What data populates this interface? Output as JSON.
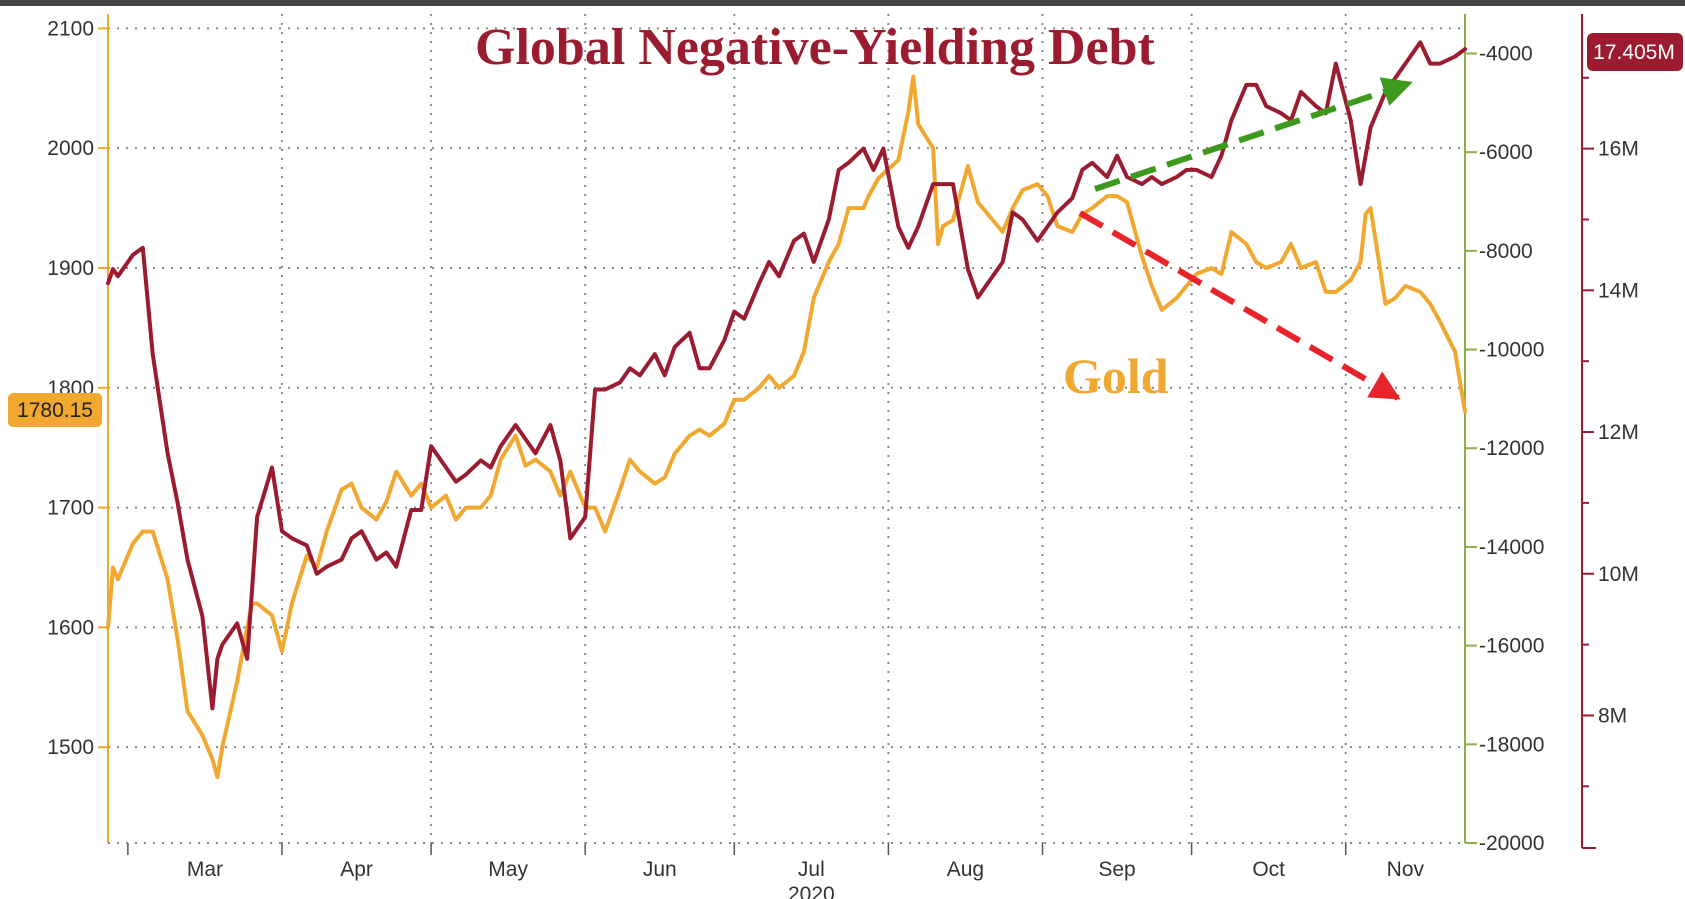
{
  "colors": {
    "gold": "#f0a830",
    "debt": "#9b1b30",
    "green_axis": "#8ab04a",
    "grid": "#888888",
    "up_arrow": "#3d9a1e",
    "down_arrow": "#e8232a",
    "background": "#ffffff",
    "frame": "#444444"
  },
  "chart_data": {
    "type": "line",
    "title": "Global Negative-Yielding Debt",
    "annotations": [
      "Gold"
    ],
    "xlabel": "2020",
    "x_ticks": [
      "Mar",
      "Apr",
      "May",
      "Jun",
      "Jul",
      "Aug",
      "Sep",
      "Oct",
      "Nov"
    ],
    "x_range": [
      "2020-02-26",
      "2020-11-25"
    ],
    "grid": true,
    "axes": {
      "left": {
        "ticks": [
          "1500",
          "1600",
          "1700",
          "1800",
          "1900",
          "2000",
          "2100"
        ],
        "range": [
          1420,
          2112
        ],
        "last_value_tag": "1780.15"
      },
      "right_inner": {
        "ticks": [
          "-4000",
          "-6000",
          "-8000",
          "-10000",
          "-12000",
          "-14000",
          "-16000",
          "-18000",
          "-20000"
        ],
        "range": [
          -20000,
          -3200
        ]
      },
      "right_outer": {
        "ticks": [
          "8M",
          "10M",
          "12M",
          "14M",
          "16M"
        ],
        "range": [
          6.2,
          17.9
        ],
        "last_value_tag": "17.405M"
      }
    },
    "series": [
      {
        "name": "Gold",
        "axis": "left",
        "x": [
          "2020-02-26",
          "2020-02-27",
          "2020-02-28",
          "2020-03-02",
          "2020-03-03",
          "2020-03-04",
          "2020-03-06",
          "2020-03-09",
          "2020-03-11",
          "2020-03-13",
          "2020-03-16",
          "2020-03-18",
          "2020-03-19",
          "2020-03-20",
          "2020-03-23",
          "2020-03-25",
          "2020-03-26",
          "2020-03-27",
          "2020-03-30",
          "2020-04-01",
          "2020-04-03",
          "2020-04-06",
          "2020-04-08",
          "2020-04-10",
          "2020-04-13",
          "2020-04-15",
          "2020-04-17",
          "2020-04-20",
          "2020-04-22",
          "2020-04-24",
          "2020-04-27",
          "2020-04-29",
          "2020-05-01",
          "2020-05-04",
          "2020-05-06",
          "2020-05-08",
          "2020-05-11",
          "2020-05-13",
          "2020-05-15",
          "2020-05-18",
          "2020-05-20",
          "2020-05-22",
          "2020-05-25",
          "2020-05-27",
          "2020-05-29",
          "2020-06-01",
          "2020-06-03",
          "2020-06-05",
          "2020-06-08",
          "2020-06-10",
          "2020-06-12",
          "2020-06-15",
          "2020-06-17",
          "2020-06-19",
          "2020-06-22",
          "2020-06-24",
          "2020-06-26",
          "2020-06-29",
          "2020-07-01",
          "2020-07-03",
          "2020-07-06",
          "2020-07-08",
          "2020-07-10",
          "2020-07-13",
          "2020-07-15",
          "2020-07-17",
          "2020-07-20",
          "2020-07-22",
          "2020-07-24",
          "2020-07-27",
          "2020-07-28",
          "2020-07-30",
          "2020-08-03",
          "2020-08-05",
          "2020-08-06",
          "2020-08-07",
          "2020-08-10",
          "2020-08-11",
          "2020-08-12",
          "2020-08-14",
          "2020-08-17",
          "2020-08-19",
          "2020-08-21",
          "2020-08-24",
          "2020-08-26",
          "2020-08-28",
          "2020-08-31",
          "2020-09-02",
          "2020-09-04",
          "2020-09-07",
          "2020-09-09",
          "2020-09-11",
          "2020-09-14",
          "2020-09-16",
          "2020-09-18",
          "2020-09-21",
          "2020-09-23",
          "2020-09-25",
          "2020-09-28",
          "2020-09-30",
          "2020-10-02",
          "2020-10-05",
          "2020-10-07",
          "2020-10-09",
          "2020-10-12",
          "2020-10-14",
          "2020-10-16",
          "2020-10-19",
          "2020-10-21",
          "2020-10-23",
          "2020-10-26",
          "2020-10-28",
          "2020-10-30",
          "2020-11-02",
          "2020-11-04",
          "2020-11-05",
          "2020-11-06",
          "2020-11-09",
          "2020-11-11",
          "2020-11-13",
          "2020-11-16",
          "2020-11-18",
          "2020-11-20",
          "2020-11-23",
          "2020-11-24",
          "2020-11-25"
        ],
        "values": [
          1600,
          1650,
          1640,
          1670,
          1675,
          1680,
          1680,
          1640,
          1590,
          1530,
          1510,
          1490,
          1475,
          1500,
          1555,
          1600,
          1620,
          1620,
          1610,
          1580,
          1620,
          1660,
          1650,
          1680,
          1715,
          1720,
          1700,
          1690,
          1705,
          1730,
          1710,
          1720,
          1700,
          1710,
          1690,
          1700,
          1700,
          1710,
          1740,
          1760,
          1735,
          1740,
          1730,
          1710,
          1730,
          1700,
          1700,
          1680,
          1715,
          1740,
          1730,
          1720,
          1725,
          1745,
          1760,
          1765,
          1760,
          1770,
          1790,
          1790,
          1800,
          1810,
          1800,
          1810,
          1830,
          1875,
          1905,
          1920,
          1950,
          1950,
          1960,
          1975,
          1990,
          2030,
          2060,
          2020,
          2000,
          1920,
          1935,
          1940,
          1985,
          1955,
          1945,
          1930,
          1950,
          1965,
          1970,
          1960,
          1935,
          1930,
          1945,
          1950,
          1960,
          1960,
          1955,
          1910,
          1885,
          1865,
          1875,
          1885,
          1895,
          1900,
          1895,
          1930,
          1920,
          1905,
          1900,
          1905,
          1920,
          1900,
          1905,
          1880,
          1880,
          1890,
          1905,
          1945,
          1950,
          1870,
          1875,
          1885,
          1880,
          1870,
          1855,
          1830,
          1805,
          1780.15
        ]
      },
      {
        "name": "Global Negative-Yielding Debt",
        "axis": "right_outer",
        "x": [
          "2020-02-26",
          "2020-02-27",
          "2020-02-28",
          "2020-03-02",
          "2020-03-04",
          "2020-03-06",
          "2020-03-09",
          "2020-03-11",
          "2020-03-13",
          "2020-03-16",
          "2020-03-18",
          "2020-03-19",
          "2020-03-20",
          "2020-03-23",
          "2020-03-25",
          "2020-03-27",
          "2020-03-30",
          "2020-04-01",
          "2020-04-03",
          "2020-04-06",
          "2020-04-08",
          "2020-04-10",
          "2020-04-13",
          "2020-04-15",
          "2020-04-17",
          "2020-04-20",
          "2020-04-22",
          "2020-04-24",
          "2020-04-27",
          "2020-04-29",
          "2020-05-01",
          "2020-05-04",
          "2020-05-06",
          "2020-05-08",
          "2020-05-11",
          "2020-05-13",
          "2020-05-15",
          "2020-05-18",
          "2020-05-20",
          "2020-05-22",
          "2020-05-25",
          "2020-05-27",
          "2020-05-29",
          "2020-06-01",
          "2020-06-03",
          "2020-06-05",
          "2020-06-08",
          "2020-06-10",
          "2020-06-12",
          "2020-06-15",
          "2020-06-17",
          "2020-06-19",
          "2020-06-22",
          "2020-06-24",
          "2020-06-26",
          "2020-06-29",
          "2020-07-01",
          "2020-07-03",
          "2020-07-06",
          "2020-07-08",
          "2020-07-10",
          "2020-07-13",
          "2020-07-15",
          "2020-07-17",
          "2020-07-20",
          "2020-07-22",
          "2020-07-24",
          "2020-07-27",
          "2020-07-29",
          "2020-07-31",
          "2020-08-03",
          "2020-08-05",
          "2020-08-07",
          "2020-08-10",
          "2020-08-12",
          "2020-08-14",
          "2020-08-17",
          "2020-08-19",
          "2020-08-21",
          "2020-08-24",
          "2020-08-26",
          "2020-08-28",
          "2020-08-31",
          "2020-09-02",
          "2020-09-04",
          "2020-09-07",
          "2020-09-09",
          "2020-09-11",
          "2020-09-14",
          "2020-09-16",
          "2020-09-18",
          "2020-09-21",
          "2020-09-23",
          "2020-09-25",
          "2020-09-28",
          "2020-09-30",
          "2020-10-02",
          "2020-10-05",
          "2020-10-07",
          "2020-10-09",
          "2020-10-12",
          "2020-10-14",
          "2020-10-16",
          "2020-10-19",
          "2020-10-21",
          "2020-10-23",
          "2020-10-26",
          "2020-10-28",
          "2020-10-30",
          "2020-11-02",
          "2020-11-04",
          "2020-11-06",
          "2020-11-09",
          "2020-11-11",
          "2020-11-13",
          "2020-11-16",
          "2020-11-18",
          "2020-11-20",
          "2020-11-23",
          "2020-11-25"
        ],
        "values": [
          14.1,
          14.3,
          14.2,
          14.5,
          14.6,
          13.1,
          11.7,
          11.0,
          10.2,
          9.4,
          8.1,
          8.8,
          9.0,
          9.3,
          8.8,
          10.8,
          11.5,
          10.6,
          10.5,
          10.4,
          10.0,
          10.1,
          10.2,
          10.5,
          10.6,
          10.2,
          10.3,
          10.1,
          10.9,
          10.9,
          11.8,
          11.5,
          11.3,
          11.4,
          11.6,
          11.5,
          11.8,
          12.1,
          11.9,
          11.7,
          12.1,
          11.6,
          10.5,
          10.8,
          12.6,
          12.6,
          12.7,
          12.9,
          12.8,
          13.1,
          12.8,
          13.2,
          13.4,
          12.9,
          12.9,
          13.3,
          13.7,
          13.6,
          14.1,
          14.4,
          14.2,
          14.7,
          14.8,
          14.4,
          15.0,
          15.7,
          15.8,
          16.0,
          15.7,
          16.0,
          14.9,
          14.6,
          14.9,
          15.5,
          15.5,
          15.5,
          14.3,
          13.9,
          14.1,
          14.4,
          15.1,
          15.0,
          14.7,
          14.9,
          15.1,
          15.3,
          15.7,
          15.8,
          15.6,
          15.9,
          15.6,
          15.5,
          15.6,
          15.5,
          15.6,
          15.7,
          15.7,
          15.6,
          15.9,
          16.4,
          16.9,
          16.9,
          16.6,
          16.5,
          16.4,
          16.8,
          16.6,
          16.5,
          17.2,
          16.4,
          15.5,
          16.3,
          16.8,
          17.0,
          17.2,
          17.5,
          17.2,
          17.2,
          17.3,
          17.405
        ]
      }
    ]
  }
}
